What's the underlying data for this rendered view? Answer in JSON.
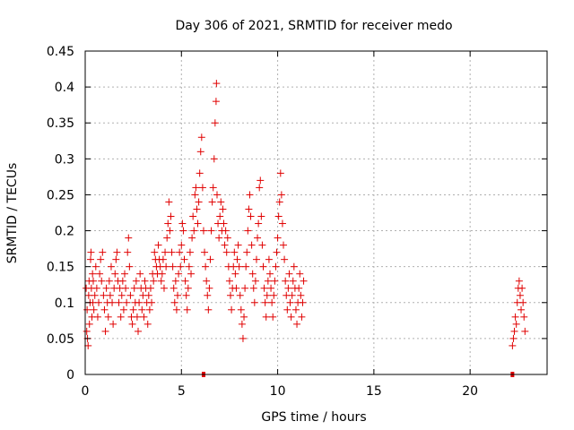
{
  "chart_data": {
    "type": "scatter",
    "title": "Day 306 of 2021, SRMTID for receiver medo",
    "xlabel": "GPS time / hours",
    "ylabel": "SRMTID / TECUs",
    "xlim": [
      0,
      24
    ],
    "ylim": [
      0,
      0.45
    ],
    "xticks": [
      0,
      5,
      10,
      15,
      20
    ],
    "yticks": [
      0,
      0.05,
      0.1,
      0.15,
      0.2,
      0.25,
      0.3,
      0.35,
      0.4,
      0.45
    ],
    "ytick_labels": [
      "0",
      "0.05",
      "0.1",
      "0.15",
      "0.2",
      "0.25",
      "0.3",
      "0.35",
      "0.4",
      "0.45"
    ],
    "xtick_labels": [
      "0",
      "5",
      "10",
      "15",
      "20"
    ],
    "grid": true,
    "marker": "+",
    "color": "#e00000",
    "series": [
      {
        "name": "SRMTID",
        "points": [
          [
            0.05,
            0.12
          ],
          [
            0.08,
            0.06
          ],
          [
            0.1,
            0.09
          ],
          [
            0.12,
            0.05
          ],
          [
            0.15,
            0.04
          ],
          [
            0.18,
            0.11
          ],
          [
            0.2,
            0.13
          ],
          [
            0.22,
            0.07
          ],
          [
            0.25,
            0.1
          ],
          [
            0.28,
            0.16
          ],
          [
            0.3,
            0.17
          ],
          [
            0.32,
            0.12
          ],
          [
            0.35,
            0.08
          ],
          [
            0.38,
            0.14
          ],
          [
            0.4,
            0.1
          ],
          [
            0.42,
            0.13
          ],
          [
            0.45,
            0.09
          ],
          [
            0.5,
            0.11
          ],
          [
            0.55,
            0.15
          ],
          [
            0.6,
            0.12
          ],
          [
            0.65,
            0.08
          ],
          [
            0.7,
            0.1
          ],
          [
            0.75,
            0.14
          ],
          [
            0.8,
            0.16
          ],
          [
            0.85,
            0.13
          ],
          [
            0.9,
            0.17
          ],
          [
            0.95,
            0.11
          ],
          [
            1.0,
            0.09
          ],
          [
            1.05,
            0.06
          ],
          [
            1.1,
            0.12
          ],
          [
            1.15,
            0.1
          ],
          [
            1.2,
            0.08
          ],
          [
            1.25,
            0.13
          ],
          [
            1.3,
            0.11
          ],
          [
            1.35,
            0.15
          ],
          [
            1.4,
            0.1
          ],
          [
            1.45,
            0.07
          ],
          [
            1.5,
            0.12
          ],
          [
            1.55,
            0.14
          ],
          [
            1.6,
            0.16
          ],
          [
            1.65,
            0.17
          ],
          [
            1.7,
            0.13
          ],
          [
            1.75,
            0.1
          ],
          [
            1.8,
            0.12
          ],
          [
            1.85,
            0.08
          ],
          [
            1.9,
            0.11
          ],
          [
            1.95,
            0.13
          ],
          [
            2.0,
            0.09
          ],
          [
            2.05,
            0.14
          ],
          [
            2.1,
            0.12
          ],
          [
            2.15,
            0.1
          ],
          [
            2.2,
            0.17
          ],
          [
            2.25,
            0.19
          ],
          [
            2.3,
            0.15
          ],
          [
            2.35,
            0.11
          ],
          [
            2.4,
            0.08
          ],
          [
            2.45,
            0.07
          ],
          [
            2.5,
            0.09
          ],
          [
            2.55,
            0.12
          ],
          [
            2.6,
            0.1
          ],
          [
            2.65,
            0.13
          ],
          [
            2.7,
            0.08
          ],
          [
            2.75,
            0.06
          ],
          [
            2.8,
            0.1
          ],
          [
            2.85,
            0.14
          ],
          [
            2.9,
            0.12
          ],
          [
            2.95,
            0.09
          ],
          [
            3.0,
            0.11
          ],
          [
            3.05,
            0.08
          ],
          [
            3.1,
            0.13
          ],
          [
            3.15,
            0.12
          ],
          [
            3.2,
            0.1
          ],
          [
            3.25,
            0.07
          ],
          [
            3.3,
            0.11
          ],
          [
            3.35,
            0.09
          ],
          [
            3.4,
            0.12
          ],
          [
            3.45,
            0.1
          ],
          [
            3.5,
            0.14
          ],
          [
            3.55,
            0.13
          ],
          [
            3.6,
            0.17
          ],
          [
            3.65,
            0.16
          ],
          [
            3.7,
            0.15
          ],
          [
            3.75,
            0.14
          ],
          [
            3.8,
            0.18
          ],
          [
            3.85,
            0.16
          ],
          [
            3.9,
            0.15
          ],
          [
            3.95,
            0.13
          ],
          [
            4.0,
            0.14
          ],
          [
            4.05,
            0.16
          ],
          [
            4.1,
            0.12
          ],
          [
            4.15,
            0.17
          ],
          [
            4.2,
            0.15
          ],
          [
            4.25,
            0.19
          ],
          [
            4.3,
            0.21
          ],
          [
            4.35,
            0.24
          ],
          [
            4.4,
            0.2
          ],
          [
            4.45,
            0.22
          ],
          [
            4.5,
            0.17
          ],
          [
            4.55,
            0.15
          ],
          [
            4.6,
            0.12
          ],
          [
            4.65,
            0.1
          ],
          [
            4.7,
            0.13
          ],
          [
            4.75,
            0.09
          ],
          [
            4.8,
            0.11
          ],
          [
            4.85,
            0.14
          ],
          [
            4.9,
            0.17
          ],
          [
            4.95,
            0.15
          ],
          [
            5.0,
            0.18
          ],
          [
            5.05,
            0.21
          ],
          [
            5.1,
            0.2
          ],
          [
            5.15,
            0.16
          ],
          [
            5.2,
            0.13
          ],
          [
            5.25,
            0.11
          ],
          [
            5.3,
            0.09
          ],
          [
            5.35,
            0.12
          ],
          [
            5.4,
            0.15
          ],
          [
            5.45,
            0.17
          ],
          [
            5.5,
            0.14
          ],
          [
            5.55,
            0.19
          ],
          [
            5.6,
            0.22
          ],
          [
            5.65,
            0.2
          ],
          [
            5.7,
            0.25
          ],
          [
            5.75,
            0.26
          ],
          [
            5.8,
            0.23
          ],
          [
            5.85,
            0.21
          ],
          [
            5.9,
            0.24
          ],
          [
            5.95,
            0.28
          ],
          [
            6.0,
            0.31
          ],
          [
            6.05,
            0.33
          ],
          [
            6.1,
            0.26
          ],
          [
            6.15,
            0.2
          ],
          [
            6.2,
            0.17
          ],
          [
            6.25,
            0.15
          ],
          [
            6.3,
            0.13
          ],
          [
            6.35,
            0.11
          ],
          [
            6.4,
            0.09
          ],
          [
            6.45,
            0.12
          ],
          [
            6.5,
            0.16
          ],
          [
            6.55,
            0.2
          ],
          [
            6.6,
            0.24
          ],
          [
            6.65,
            0.26
          ],
          [
            6.7,
            0.3
          ],
          [
            6.75,
            0.35
          ],
          [
            6.8,
            0.38
          ],
          [
            6.82,
            0.405
          ],
          [
            6.85,
            0.25
          ],
          [
            6.9,
            0.21
          ],
          [
            6.95,
            0.19
          ],
          [
            7.0,
            0.22
          ],
          [
            7.05,
            0.24
          ],
          [
            7.1,
            0.2
          ],
          [
            7.15,
            0.23
          ],
          [
            7.2,
            0.21
          ],
          [
            7.25,
            0.18
          ],
          [
            7.3,
            0.2
          ],
          [
            7.35,
            0.17
          ],
          [
            7.4,
            0.19
          ],
          [
            7.45,
            0.15
          ],
          [
            7.5,
            0.13
          ],
          [
            7.55,
            0.11
          ],
          [
            7.6,
            0.09
          ],
          [
            7.65,
            0.12
          ],
          [
            7.7,
            0.15
          ],
          [
            7.75,
            0.17
          ],
          [
            7.8,
            0.14
          ],
          [
            7.85,
            0.12
          ],
          [
            7.9,
            0.16
          ],
          [
            7.95,
            0.18
          ],
          [
            8.0,
            0.15
          ],
          [
            8.05,
            0.11
          ],
          [
            8.1,
            0.09
          ],
          [
            8.15,
            0.07
          ],
          [
            8.2,
            0.05
          ],
          [
            8.25,
            0.08
          ],
          [
            8.3,
            0.12
          ],
          [
            8.35,
            0.15
          ],
          [
            8.4,
            0.17
          ],
          [
            8.45,
            0.2
          ],
          [
            8.5,
            0.23
          ],
          [
            8.55,
            0.25
          ],
          [
            8.6,
            0.22
          ],
          [
            8.65,
            0.18
          ],
          [
            8.7,
            0.14
          ],
          [
            8.75,
            0.12
          ],
          [
            8.8,
            0.1
          ],
          [
            8.85,
            0.13
          ],
          [
            8.9,
            0.16
          ],
          [
            8.95,
            0.19
          ],
          [
            9.0,
            0.21
          ],
          [
            9.05,
            0.26
          ],
          [
            9.1,
            0.27
          ],
          [
            9.15,
            0.22
          ],
          [
            9.2,
            0.18
          ],
          [
            9.25,
            0.15
          ],
          [
            9.3,
            0.12
          ],
          [
            9.35,
            0.1
          ],
          [
            9.4,
            0.08
          ],
          [
            9.45,
            0.11
          ],
          [
            9.5,
            0.13
          ],
          [
            9.55,
            0.16
          ],
          [
            9.6,
            0.14
          ],
          [
            9.65,
            0.12
          ],
          [
            9.7,
            0.1
          ],
          [
            9.75,
            0.08
          ],
          [
            9.8,
            0.11
          ],
          [
            9.85,
            0.13
          ],
          [
            9.9,
            0.15
          ],
          [
            9.95,
            0.17
          ],
          [
            10.0,
            0.19
          ],
          [
            10.05,
            0.22
          ],
          [
            10.1,
            0.24
          ],
          [
            10.15,
            0.28
          ],
          [
            10.2,
            0.25
          ],
          [
            10.25,
            0.21
          ],
          [
            10.3,
            0.18
          ],
          [
            10.35,
            0.16
          ],
          [
            10.4,
            0.13
          ],
          [
            10.45,
            0.11
          ],
          [
            10.5,
            0.09
          ],
          [
            10.55,
            0.12
          ],
          [
            10.6,
            0.14
          ],
          [
            10.65,
            0.1
          ],
          [
            10.7,
            0.08
          ],
          [
            10.75,
            0.11
          ],
          [
            10.8,
            0.13
          ],
          [
            10.85,
            0.15
          ],
          [
            10.9,
            0.12
          ],
          [
            10.95,
            0.09
          ],
          [
            11.0,
            0.07
          ],
          [
            11.05,
            0.1
          ],
          [
            11.1,
            0.12
          ],
          [
            11.15,
            0.14
          ],
          [
            11.2,
            0.11
          ],
          [
            11.25,
            0.08
          ],
          [
            11.3,
            0.1
          ],
          [
            11.35,
            0.13
          ],
          [
            22.2,
            0.04
          ],
          [
            22.25,
            0.05
          ],
          [
            22.3,
            0.06
          ],
          [
            22.35,
            0.08
          ],
          [
            22.4,
            0.07
          ],
          [
            22.45,
            0.1
          ],
          [
            22.5,
            0.12
          ],
          [
            22.55,
            0.13
          ],
          [
            22.6,
            0.11
          ],
          [
            22.65,
            0.09
          ],
          [
            22.7,
            0.12
          ],
          [
            22.75,
            0.1
          ],
          [
            22.8,
            0.08
          ],
          [
            22.85,
            0.06
          ]
        ]
      }
    ],
    "gap_markers": [
      6.15,
      22.2
    ]
  }
}
